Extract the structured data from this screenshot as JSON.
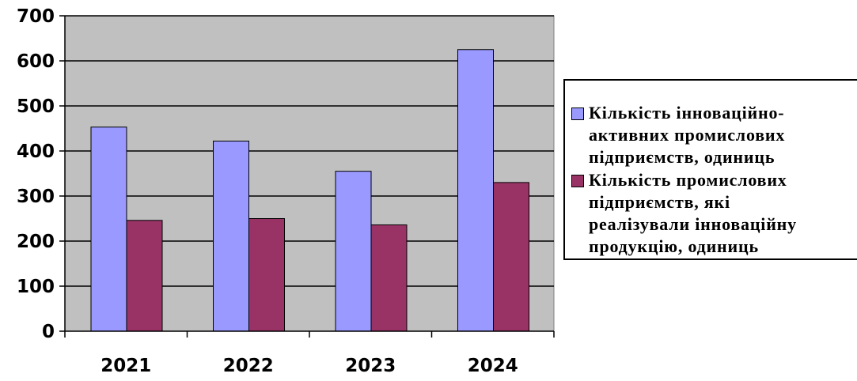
{
  "chart_data": {
    "type": "bar",
    "categories": [
      "2021",
      "2022",
      "2023",
      "2024"
    ],
    "series": [
      {
        "name": "Кількість інноваційно-\nактивних промислових\nпідприємств, одиниць",
        "values": [
          453,
          422,
          355,
          625
        ],
        "color": "#9999ff"
      },
      {
        "name": "Кількість промислових\nпідприємств, які\nреалізували інноваційну\nпродукцію, одиниць",
        "values": [
          246,
          250,
          236,
          330
        ],
        "color": "#993366"
      }
    ],
    "ylim": [
      0,
      700
    ],
    "yticks": [
      0,
      100,
      200,
      300,
      400,
      500,
      600,
      700
    ],
    "ytick_labels": [
      "0",
      "100",
      "200",
      "300",
      "400",
      "500",
      "600",
      "700"
    ],
    "grid": true,
    "plot_background": "#c0c0c0",
    "legend_position": "right"
  }
}
